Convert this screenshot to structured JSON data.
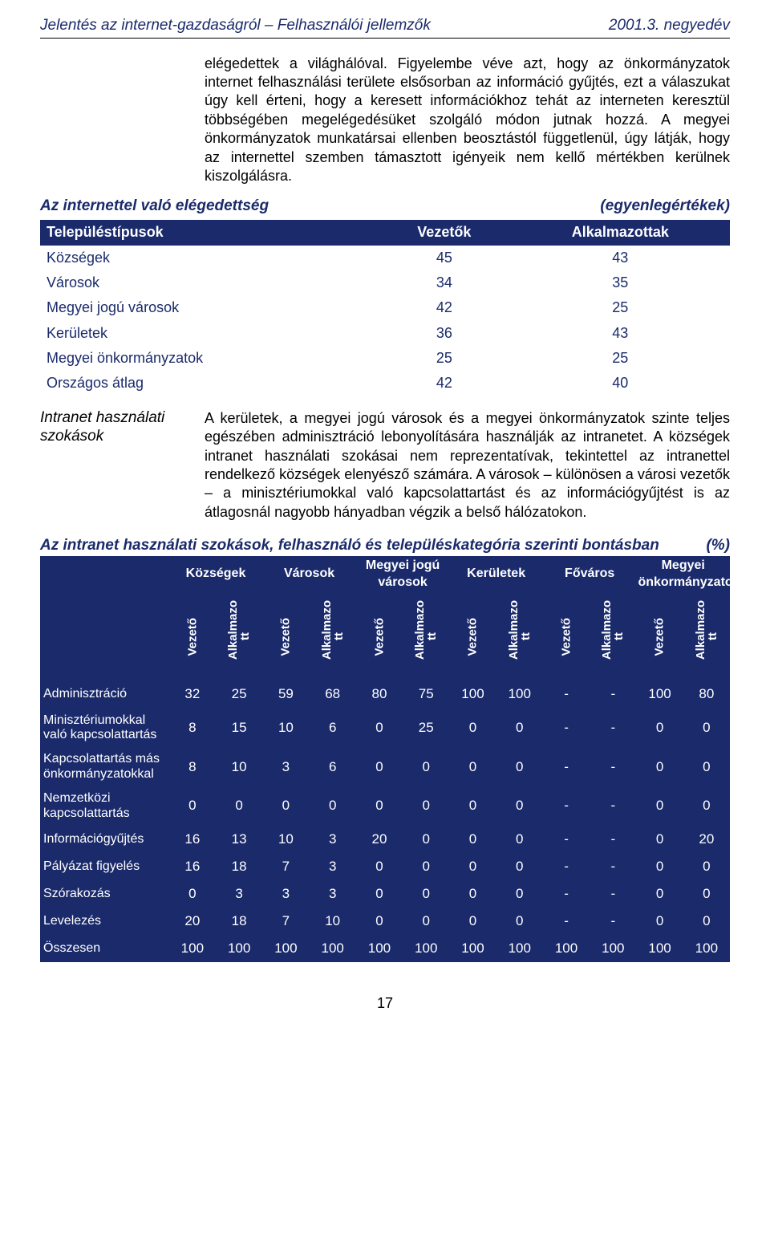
{
  "header": {
    "left": "Jelentés az internet-gazdaságról – Felhasználói jellemzők",
    "right": "2001.3. negyedév"
  },
  "paragraph1": "elégedettek a világhálóval. Figyelembe véve azt, hogy az önkormányzatok internet felhasználási területe elsősorban az információ gyűjtés, ezt a válaszukat úgy kell érteni, hogy a keresett információkhoz tehát az interneten keresztül többségében megelégedésüket szolgáló módon jutnak hozzá. A megyei önkormányzatok munkatársai ellenben beosztástól függetlenül, úgy látják, hogy az internettel szemben támasztott igényeik nem kellő mértékben kerülnek kiszolgálásra.",
  "table1": {
    "title_left": "Az internettel való elégedettség",
    "title_right": "(egyenlegértékek)",
    "headers": [
      "Településtípusok",
      "Vezetők",
      "Alkalmazottak"
    ],
    "rows": [
      {
        "label": "Községek",
        "v": "45",
        "a": "43"
      },
      {
        "label": "Városok",
        "v": "34",
        "a": "35"
      },
      {
        "label": "Megyei jogú városok",
        "v": "42",
        "a": "25"
      },
      {
        "label": "Kerületek",
        "v": "36",
        "a": "43"
      },
      {
        "label": "Megyei önkormányzatok",
        "v": "25",
        "a": "25"
      },
      {
        "label": "Országos átlag",
        "v": "42",
        "a": "40"
      }
    ]
  },
  "section2": {
    "sidelabel": "Intranet használati szokások",
    "paragraph": "A kerületek, a megyei jogú városok és a megyei önkormányzatok szinte teljes egészében adminisztráció lebonyolítására használják az intranetet. A községek intranet használati szokásai nem reprezentatívak, tekintettel az intranettel rendelkező községek elenyésző számára. A városok – különösen a városi vezetők – a minisztériumokkal való kapcsolattartást és az információgyűjtést is az átlagosnál nagyobb hányadban végzik a belső hálózatokon."
  },
  "table2": {
    "title": "Az intranet használati szokások, felhasználó és településkategória szerinti bontásban",
    "title_right": "(%)",
    "group_headers": [
      "Községek",
      "Városok",
      "Megyei jogú városok",
      "Kerületek",
      "Főváros",
      "Megyei önkormányzatok"
    ],
    "sub1": "Vezető",
    "sub2_a": "Alkalmazo",
    "sub2_b": "tt",
    "rows": [
      {
        "label": "Adminisztráció",
        "c": [
          "32",
          "25",
          "59",
          "68",
          "80",
          "75",
          "100",
          "100",
          "-",
          "-",
          "100",
          "80"
        ]
      },
      {
        "label": "Minisztériumokkal való kapcsolattartás",
        "c": [
          "8",
          "15",
          "10",
          "6",
          "0",
          "25",
          "0",
          "0",
          "-",
          "-",
          "0",
          "0"
        ]
      },
      {
        "label": "Kapcsolattartás más önkormányzatokkal",
        "c": [
          "8",
          "10",
          "3",
          "6",
          "0",
          "0",
          "0",
          "0",
          "-",
          "-",
          "0",
          "0"
        ]
      },
      {
        "label": "Nemzetközi kapcsolattartás",
        "c": [
          "0",
          "0",
          "0",
          "0",
          "0",
          "0",
          "0",
          "0",
          "-",
          "-",
          "0",
          "0"
        ]
      },
      {
        "label": "Információgyűjtés",
        "c": [
          "16",
          "13",
          "10",
          "3",
          "20",
          "0",
          "0",
          "0",
          "-",
          "-",
          "0",
          "20"
        ]
      },
      {
        "label": "Pályázat figyelés",
        "c": [
          "16",
          "18",
          "7",
          "3",
          "0",
          "0",
          "0",
          "0",
          "-",
          "-",
          "0",
          "0"
        ]
      },
      {
        "label": "Szórakozás",
        "c": [
          "0",
          "3",
          "3",
          "3",
          "0",
          "0",
          "0",
          "0",
          "-",
          "-",
          "0",
          "0"
        ]
      },
      {
        "label": "Levelezés",
        "c": [
          "20",
          "18",
          "7",
          "10",
          "0",
          "0",
          "0",
          "0",
          "-",
          "-",
          "0",
          "0"
        ]
      },
      {
        "label": "Összesen",
        "c": [
          "100",
          "100",
          "100",
          "100",
          "100",
          "100",
          "100",
          "100",
          "100",
          "100",
          "100",
          "100"
        ]
      }
    ]
  },
  "pagenum": "17",
  "colors": {
    "navy": "#1a2a6b",
    "text": "#000000",
    "bg": "#ffffff"
  }
}
